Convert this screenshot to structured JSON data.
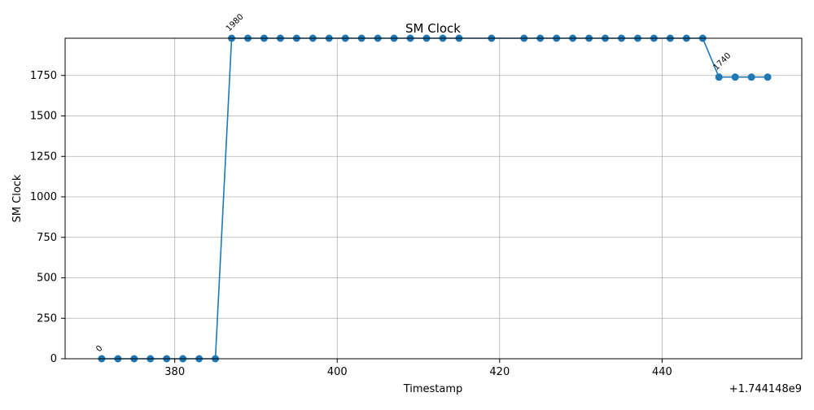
{
  "chart_data": {
    "type": "line",
    "title": "SM Clock",
    "xlabel": "Timestamp",
    "ylabel": "SM Clock",
    "x_offset_label": "+1.744148e9",
    "x_tick_labels": [
      "380",
      "400",
      "420",
      "440"
    ],
    "y_tick_labels": [
      "0",
      "250",
      "500",
      "750",
      "1000",
      "1250",
      "1500",
      "1750"
    ],
    "x_ticks": [
      380,
      400,
      420,
      440
    ],
    "y_ticks": [
      0,
      250,
      500,
      750,
      1000,
      1250,
      1500,
      1750
    ],
    "xlim": [
      1744148366.5,
      1744148457.2
    ],
    "ylim": [
      0,
      1980
    ],
    "grid": true,
    "legend": "none",
    "series": [
      {
        "color": "#1f77b4",
        "marker": "circle",
        "x": [
          1744148371,
          1744148373,
          1744148375,
          1744148377,
          1744148379,
          1744148381,
          1744148383,
          1744148385,
          1744148387,
          1744148389,
          1744148391,
          1744148393,
          1744148395,
          1744148397,
          1744148399,
          1744148401,
          1744148403,
          1744148405,
          1744148407,
          1744148409,
          1744148411,
          1744148413,
          1744148415,
          1744148419,
          1744148423,
          1744148425,
          1744148427,
          1744148429,
          1744148431,
          1744148433,
          1744148435,
          1744148437,
          1744148439,
          1744148441,
          1744148443,
          1744148445,
          1744148447,
          1744148449,
          1744148451,
          1744148453
        ],
        "y": [
          0,
          0,
          0,
          0,
          0,
          0,
          0,
          0,
          1980,
          1980,
          1980,
          1980,
          1980,
          1980,
          1980,
          1980,
          1980,
          1980,
          1980,
          1980,
          1980,
          1980,
          1980,
          1980,
          1980,
          1980,
          1980,
          1980,
          1980,
          1980,
          1980,
          1980,
          1980,
          1980,
          1980,
          1980,
          1740,
          1740,
          1740,
          1740
        ]
      }
    ],
    "annotations": [
      {
        "x": 1744148371,
        "y": 0,
        "text": "0"
      },
      {
        "x": 1744148387,
        "y": 1980,
        "text": "1980"
      },
      {
        "x": 1744148447,
        "y": 1740,
        "text": "1740"
      }
    ]
  }
}
